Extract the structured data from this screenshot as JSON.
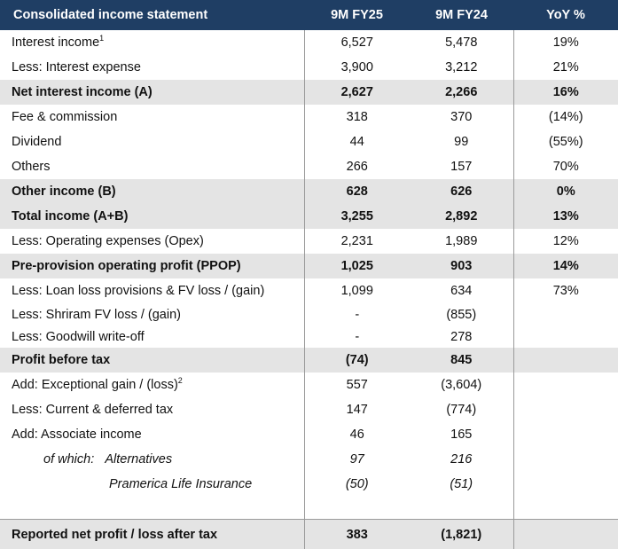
{
  "header": {
    "title": "Consolidated income statement",
    "col1": "9M FY25",
    "col2": "9M FY24",
    "col3": "YoY %"
  },
  "rows": [
    {
      "label": "Interest income",
      "sup": "1",
      "v1": "6,527",
      "v2": "5,478",
      "yoy": "19%"
    },
    {
      "label": "Less: Interest expense",
      "v1": "3,900",
      "v2": "3,212",
      "yoy": "21%"
    },
    {
      "label": "Net interest income (A)",
      "v1": "2,627",
      "v2": "2,266",
      "yoy": "16%"
    },
    {
      "label": "Fee & commission",
      "v1": "318",
      "v2": "370",
      "yoy": "(14%)"
    },
    {
      "label": "Dividend",
      "v1": "44",
      "v2": "99",
      "yoy": "(55%)"
    },
    {
      "label": "Others",
      "v1": "266",
      "v2": "157",
      "yoy": "70%"
    },
    {
      "label": "Other income (B)",
      "v1": "628",
      "v2": "626",
      "yoy": "0%"
    },
    {
      "label": "Total income (A+B)",
      "v1": "3,255",
      "v2": "2,892",
      "yoy": "13%"
    },
    {
      "label": "Less: Operating expenses (Opex)",
      "v1": "2,231",
      "v2": "1,989",
      "yoy": "12%"
    },
    {
      "label": "Pre-provision operating profit (PPOP)",
      "v1": "1,025",
      "v2": "903",
      "yoy": "14%"
    },
    {
      "label": "Less: Loan loss provisions & FV loss / (gain)",
      "v1": "1,099",
      "v2": "634",
      "yoy": "73%"
    },
    {
      "label": "Less: Shriram FV loss / (gain)",
      "v1": "-",
      "v2": "(855)",
      "yoy": ""
    },
    {
      "label": "Less: Goodwill write-off",
      "v1": "-",
      "v2": "278",
      "yoy": ""
    },
    {
      "label": "Profit before tax",
      "v1": "(74)",
      "v2": "845",
      "yoy": ""
    },
    {
      "label": "Add: Exceptional gain / (loss)",
      "sup": "2",
      "v1": "557",
      "v2": "(3,604)",
      "yoy": ""
    },
    {
      "label": "Less: Current & deferred tax",
      "v1": "147",
      "v2": "(774)",
      "yoy": ""
    },
    {
      "label": "Add: Associate income",
      "v1": "46",
      "v2": "165",
      "yoy": ""
    },
    {
      "prefix": "of which:",
      "label": "Alternatives",
      "v1": "97",
      "v2": "216",
      "yoy": ""
    },
    {
      "label": "Pramerica Life Insurance",
      "v1": "(50)",
      "v2": "(51)",
      "yoy": ""
    },
    {
      "label": "Reported net profit / loss after tax",
      "v1": "383",
      "v2": "(1,821)",
      "yoy": ""
    }
  ]
}
